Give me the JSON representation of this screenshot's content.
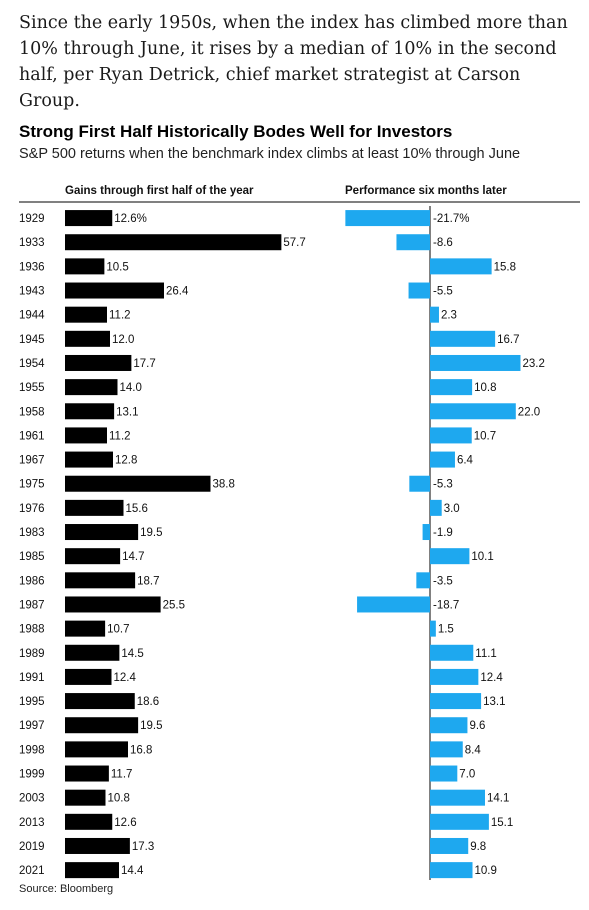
{
  "intro": "Since the early 1950s, when the index has climbed more than 10% through June, it rises by a median of 10% in the second half, per Ryan Detrick, chief market strategist at Carson Group.",
  "source": "Source: Bloomberg",
  "colors": {
    "left_bar": "#000000",
    "right_bar": "#1ea8ef",
    "axis": "#000000"
  },
  "chart_data": {
    "type": "bar",
    "orientation": "horizontal",
    "title": "Strong First Half Historically Bodes Well for Investors",
    "subtitle": "S&P 500 returns when the benchmark index climbs at least 10% through June",
    "categories": [
      "1929",
      "1933",
      "1936",
      "1943",
      "1944",
      "1945",
      "1954",
      "1955",
      "1958",
      "1961",
      "1967",
      "1975",
      "1976",
      "1983",
      "1985",
      "1986",
      "1987",
      "1988",
      "1989",
      "1991",
      "1995",
      "1997",
      "1998",
      "1999",
      "2003",
      "2013",
      "2019",
      "2021"
    ],
    "series": [
      {
        "name": "Gains through first half of the year",
        "values": [
          12.6,
          57.7,
          10.5,
          26.4,
          11.2,
          12.0,
          17.7,
          14.0,
          13.1,
          11.2,
          12.8,
          38.8,
          15.6,
          19.5,
          14.7,
          18.7,
          25.5,
          10.7,
          14.5,
          12.4,
          18.6,
          19.5,
          16.8,
          11.7,
          10.8,
          12.6,
          17.3,
          14.4
        ],
        "labels": [
          "12.6%",
          "57.7",
          "10.5",
          "26.4",
          "11.2",
          "12.0",
          "17.7",
          "14.0",
          "13.1",
          "11.2",
          "12.8",
          "38.8",
          "15.6",
          "19.5",
          "14.7",
          "18.7",
          "25.5",
          "10.7",
          "14.5",
          "12.4",
          "18.6",
          "19.5",
          "16.8",
          "11.7",
          "10.8",
          "12.6",
          "17.3",
          "14.4"
        ]
      },
      {
        "name": "Performance six months later",
        "values": [
          -21.7,
          -8.6,
          15.8,
          -5.5,
          2.3,
          16.7,
          23.2,
          10.8,
          22.0,
          10.7,
          6.4,
          -5.3,
          3.0,
          -1.9,
          10.1,
          -3.5,
          -18.7,
          1.5,
          11.1,
          12.4,
          13.1,
          9.6,
          8.4,
          7.0,
          14.1,
          15.1,
          9.8,
          10.9
        ],
        "labels": [
          "-21.7%",
          "-8.6",
          "15.8",
          "-5.5",
          "2.3",
          "16.7",
          "23.2",
          "10.8",
          "22.0",
          "10.7",
          "6.4",
          "-5.3",
          "3.0",
          "-1.9",
          "10.1",
          "-3.5",
          "-18.7",
          "1.5",
          "11.1",
          "12.4",
          "13.1",
          "9.6",
          "8.4",
          "7.0",
          "14.1",
          "15.1",
          "9.8",
          "10.9"
        ]
      }
    ],
    "grid": false,
    "legend": "none"
  }
}
